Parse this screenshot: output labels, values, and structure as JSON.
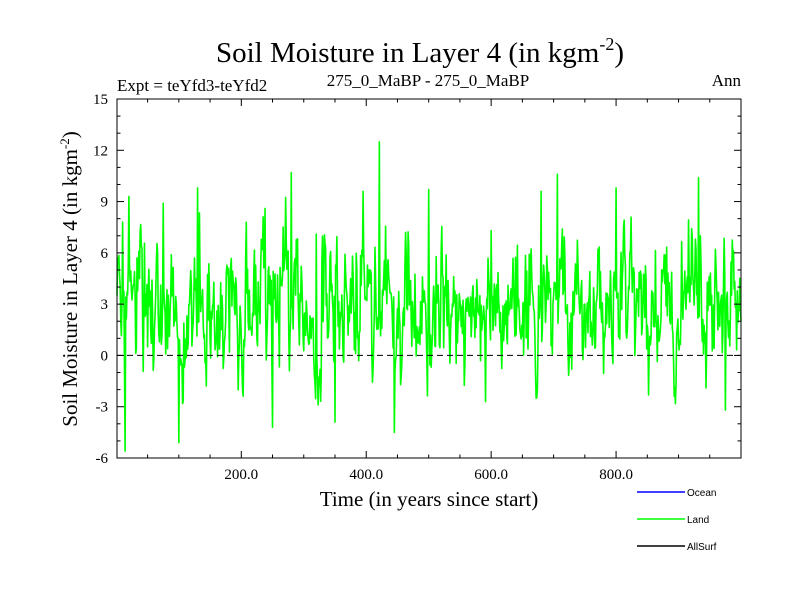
{
  "chart_data": {
    "type": "line",
    "title": "Soil Moisture in Layer 4 (in kgm",
    "title_sup": "-2",
    "title_close": ")",
    "subtitle_left": "Expt = teYfd3-teYfd2",
    "subtitle_center": "275_0_MaBP - 275_0_MaBP",
    "subtitle_right": "Ann",
    "xlabel": "Time (in years since start)",
    "ylabel": "Soil Moisture in Layer 4 (in kgm",
    "ylabel_sup": "-2",
    "ylabel_close": ")",
    "xlim": [
      1,
      1000
    ],
    "ylim": [
      -6,
      15
    ],
    "xticks": [
      200,
      400,
      600,
      800
    ],
    "xtick_labels": [
      "200.0",
      "400.0",
      "600.0",
      "800.0"
    ],
    "yticks": [
      -6,
      -3,
      0,
      3,
      6,
      9,
      12,
      15
    ],
    "ytick_labels": [
      "-6",
      "-3",
      "0",
      "3",
      "6",
      "9",
      "12",
      "15"
    ],
    "zero_line": 0,
    "legend": [
      {
        "name": "Ocean",
        "color": "#0000ff"
      },
      {
        "name": "Land",
        "color": "#00ff00"
      },
      {
        "name": "AllSurf",
        "color": "#000000"
      }
    ],
    "series": [
      {
        "name": "Land",
        "color": "#00ff00",
        "n_points": 1000,
        "mean": 2.8,
        "std": 2.6,
        "max": 12.5,
        "max_at_year": 421,
        "min": -5.6,
        "min_at_year": 14,
        "values_sample": [
          [
            1,
            3.5
          ],
          [
            10,
            7.8
          ],
          [
            14,
            -5.6
          ],
          [
            20,
            9.3
          ],
          [
            50,
            0.5
          ],
          [
            75,
            8.9
          ],
          [
            100,
            -5.1
          ],
          [
            130,
            9.8
          ],
          [
            200,
            1.0
          ],
          [
            250,
            -4.2
          ],
          [
            280,
            10.7
          ],
          [
            320,
            7.1
          ],
          [
            350,
            -3.9
          ],
          [
            395,
            9.6
          ],
          [
            421,
            12.5
          ],
          [
            445,
            -4.5
          ],
          [
            500,
            9.7
          ],
          [
            550,
            3.2
          ],
          [
            600,
            7.3
          ],
          [
            640,
            1.2
          ],
          [
            680,
            9.6
          ],
          [
            706,
            10.6
          ],
          [
            750,
            3.0
          ],
          [
            800,
            9.8
          ],
          [
            830,
            0.0
          ],
          [
            880,
            2.9
          ],
          [
            932,
            10.4
          ],
          [
            975,
            -3.2
          ],
          [
            1000,
            2.0
          ]
        ]
      }
    ]
  }
}
